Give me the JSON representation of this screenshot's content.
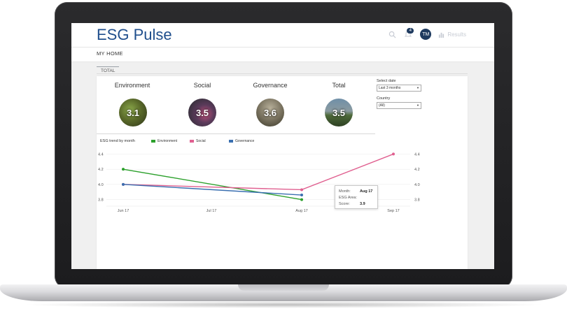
{
  "app": {
    "title": "ESG Pulse"
  },
  "header": {
    "notification_count": "4",
    "avatar_initials": "TM",
    "results_label": "Results"
  },
  "nav": {
    "home_label": "MY HOME"
  },
  "tabs": [
    {
      "label": "TOTAL"
    }
  ],
  "scores": [
    {
      "label": "Environment",
      "value": "3.1"
    },
    {
      "label": "Social",
      "value": "3.5"
    },
    {
      "label": "Governance",
      "value": "3.6"
    },
    {
      "label": "Total",
      "value": "3.5"
    }
  ],
  "filters": {
    "date": {
      "label": "Select date",
      "value": "Last 3 months"
    },
    "country": {
      "label": "Country",
      "value": "(All)"
    }
  },
  "icons": {
    "search": "search-icon",
    "bell": "bell-icon",
    "bar_chart": "bar-chart-icon",
    "dropdown": "chevron-down-icon"
  },
  "colors": {
    "brand": "#1f4e8c",
    "environment": "#2ca02c",
    "social": "#e06090",
    "governance": "#3a6fb0"
  },
  "tooltip": {
    "month_label": "Month:",
    "month_value": "Aug 17",
    "area_label": "ESG Area:",
    "area_value": "",
    "score_label": "Score:",
    "score_value": "3.9"
  },
  "chart_data": {
    "type": "line",
    "title": "ESG trend by month",
    "x": [
      "Jun 17",
      "Jul 17",
      "Aug 17",
      "Sep 17"
    ],
    "x_ticks": [
      "Jun 17",
      "Jul 17",
      "Aug 17",
      "Sep 17"
    ],
    "y_ticks": [
      "4.4",
      "4.2",
      "4.0",
      "3.8"
    ],
    "ylim": [
      3.75,
      4.45
    ],
    "legend_position": "top",
    "series": [
      {
        "name": "Environment",
        "color": "#2ca02c",
        "points": [
          {
            "x": "Jun 17",
            "y": 4.2
          },
          {
            "x": "Aug 17",
            "y": 3.8
          }
        ]
      },
      {
        "name": "Social",
        "color": "#e06090",
        "points": [
          {
            "x": "Jun 17",
            "y": 4.0
          },
          {
            "x": "Aug 17",
            "y": 3.93
          },
          {
            "x": "Sep 17",
            "y": 4.4
          }
        ]
      },
      {
        "name": "Governance",
        "color": "#3a6fb0",
        "points": [
          {
            "x": "Jun 17",
            "y": 4.0
          },
          {
            "x": "Aug 17",
            "y": 3.86
          }
        ]
      }
    ]
  }
}
